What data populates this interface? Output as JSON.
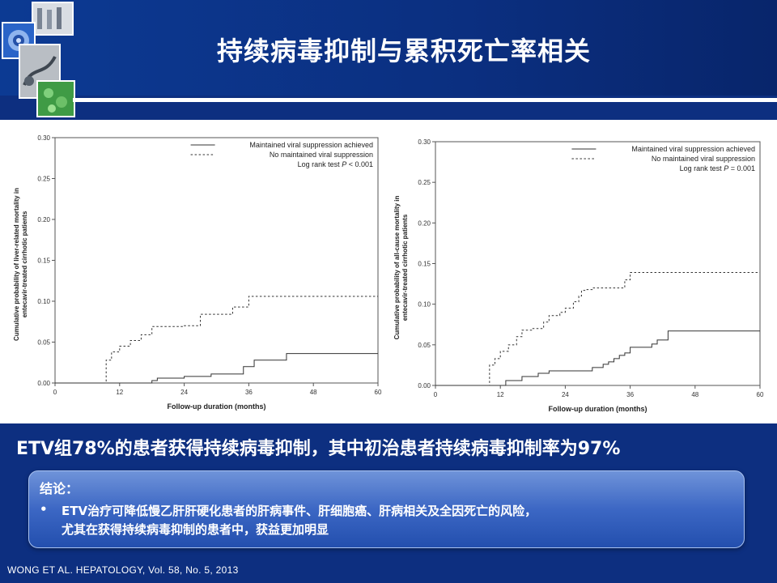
{
  "title": "持续病毒抑制与累积死亡率相关",
  "finding": "ETV组78%的患者获得持续病毒抑制，其中初治患者持续病毒抑制率为97%",
  "conclusion": {
    "heading": "结论：",
    "bullet": "•",
    "line1": "ETV治疗可降低慢乙肝肝硬化患者的肝病事件、肝细胞癌、肝病相关及全因死亡的风险，",
    "line2": "尤其在获得持续病毒抑制的患者中，获益更加明显"
  },
  "citation": "WONG ET AL. HEPATOLOGY, Vol. 58, No. 5, 2013",
  "colors": {
    "background": "#0d2f80",
    "box": "#3c67c4",
    "text": "#ffffff"
  },
  "chart_data": [
    {
      "type": "line",
      "title": "",
      "xlabel": "Follow-up duration (months)",
      "ylabel": "Cumulative probability of liver-related mortality in entecavir-treated cirrhotic patients",
      "xlim": [
        0,
        60
      ],
      "ylim": [
        0,
        0.3
      ],
      "xticks": [
        0,
        12,
        24,
        36,
        48,
        60
      ],
      "yticks": [
        "0.00",
        "0.05",
        "0.10",
        "0.15",
        "0.20",
        "0.25",
        "0.30"
      ],
      "legend_position": "top-right",
      "annotation": {
        "prefix": "Log rank test ",
        "p": "P",
        "suffix": " < 0.001"
      },
      "series": [
        {
          "name": "Maintained viral suppression achieved",
          "style": "solid",
          "x": [
            0,
            18,
            19,
            24,
            29,
            35,
            37,
            43,
            60
          ],
          "y": [
            0,
            0.003,
            0.006,
            0.008,
            0.011,
            0.02,
            0.028,
            0.036,
            0.036
          ]
        },
        {
          "name": "No maintained viral suppression",
          "style": "dashed",
          "x": [
            0,
            9.5,
            10.5,
            12,
            14,
            16,
            18,
            21,
            24,
            27,
            33,
            36,
            60
          ],
          "y": [
            0,
            0.028,
            0.038,
            0.045,
            0.052,
            0.059,
            0.069,
            0.069,
            0.07,
            0.084,
            0.093,
            0.106,
            0.106
          ]
        }
      ]
    },
    {
      "type": "line",
      "title": "",
      "xlabel": "Follow-up duration (months)",
      "ylabel": "Cumulative probability of all-cause mortality in entecavir-treated cirrhotic patients",
      "xlim": [
        0,
        60
      ],
      "ylim": [
        0,
        0.3
      ],
      "xticks": [
        0,
        12,
        24,
        36,
        48,
        60
      ],
      "yticks": [
        "0.00",
        "0.05",
        "0.10",
        "0.15",
        "0.20",
        "0.25",
        "0.30"
      ],
      "legend_position": "top-right",
      "annotation": {
        "prefix": "Log rank test ",
        "p": "P",
        "suffix": " = 0.001"
      },
      "series": [
        {
          "name": "Maintained viral suppression achieved",
          "style": "solid",
          "x": [
            0,
            13,
            16,
            19,
            21,
            24,
            29,
            31,
            32,
            33,
            34,
            35,
            36,
            40,
            41,
            43,
            60
          ],
          "y": [
            0,
            0.006,
            0.011,
            0.015,
            0.018,
            0.018,
            0.022,
            0.026,
            0.029,
            0.033,
            0.037,
            0.04,
            0.047,
            0.051,
            0.056,
            0.067,
            0.067
          ]
        },
        {
          "name": "No maintained viral suppression",
          "style": "dashed",
          "x": [
            0,
            10,
            11,
            12,
            13.5,
            15,
            16,
            17,
            18,
            20,
            21,
            23,
            24,
            25.5,
            26.5,
            27,
            28,
            29,
            31,
            35,
            36,
            60
          ],
          "y": [
            0,
            0.025,
            0.033,
            0.042,
            0.05,
            0.06,
            0.068,
            0.068,
            0.07,
            0.078,
            0.086,
            0.09,
            0.095,
            0.103,
            0.11,
            0.117,
            0.118,
            0.12,
            0.12,
            0.13,
            0.139,
            0.139
          ]
        }
      ]
    }
  ]
}
